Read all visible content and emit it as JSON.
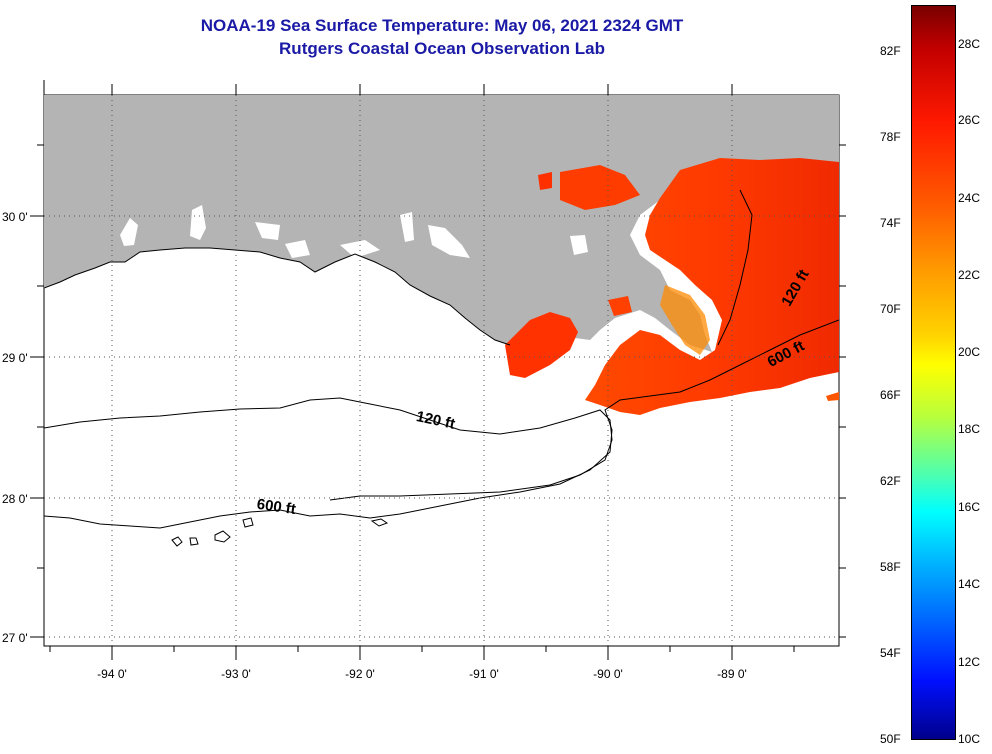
{
  "title": {
    "line1": "NOAA-19 Sea Surface Temperature:  May 06, 2021 2324 GMT",
    "line2": "Rutgers Coastal Ocean Observation Lab"
  },
  "axes": {
    "x_ticks": [
      "-94 0'",
      "-93 0'",
      "-92 0'",
      "-91 0'",
      "-90 0'",
      "-89 0'"
    ],
    "y_ticks": [
      "30 0'",
      "29 0'",
      "28 0'",
      "27 0'"
    ]
  },
  "contours": {
    "shallow_label": "120 ft",
    "deep_label": "600 ft"
  },
  "colorbar": {
    "fahrenheit": [
      "82F",
      "78F",
      "74F",
      "70F",
      "66F",
      "62F",
      "58F",
      "54F",
      "50F"
    ],
    "celsius": [
      "28C",
      "26C",
      "24C",
      "22C",
      "20C",
      "18C",
      "16C",
      "14C",
      "12C",
      "10C"
    ]
  },
  "colors": {
    "title": "#1a1aa6",
    "land": "#b4b4b4",
    "sst_warm": "#ff3a00",
    "sst_cool": "#ff8c00"
  }
}
